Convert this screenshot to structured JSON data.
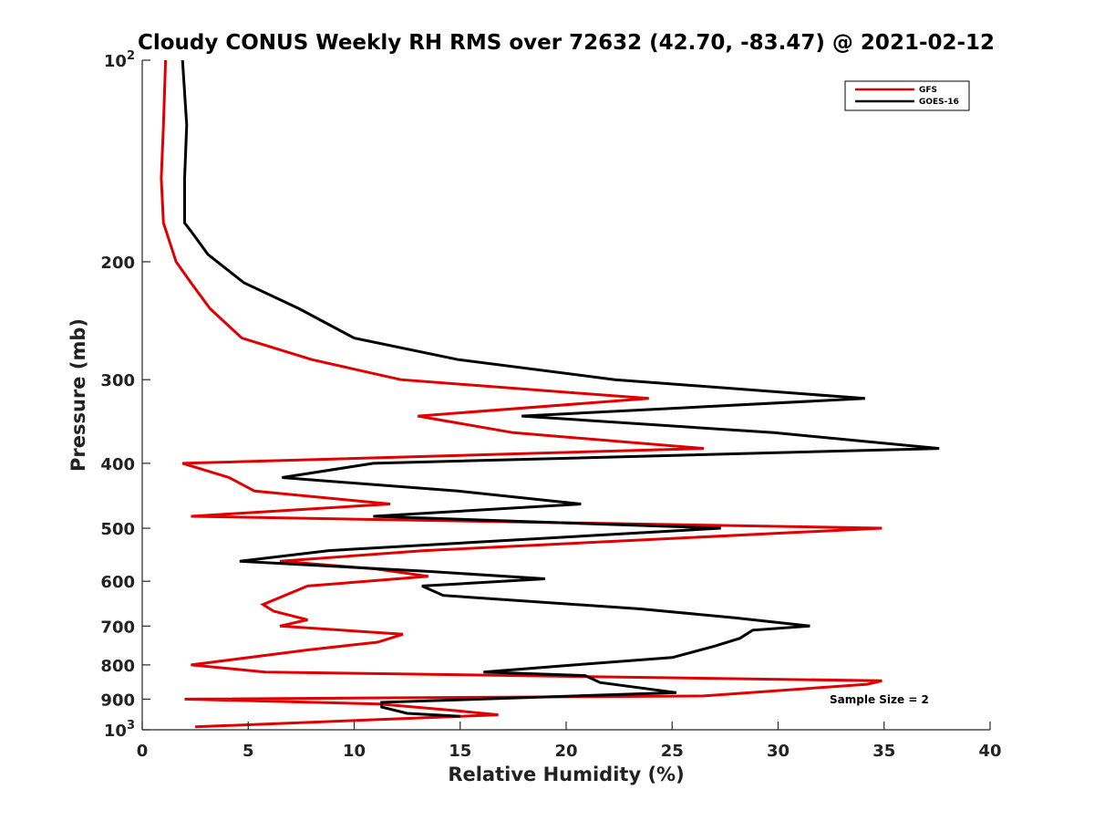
{
  "chart_data": {
    "type": "line",
    "title": "Cloudy CONUS Weekly RH RMS over 72632 (42.70, -83.47) @ 2021-02-12",
    "xlabel": "Relative Humidity (%)",
    "ylabel": "Pressure (mb)",
    "xlim": [
      0,
      40
    ],
    "ylim": [
      100,
      1000
    ],
    "y_scale": "log",
    "y_reversed": true,
    "grid": false,
    "legend_position": "top-right",
    "x_ticks": [
      "0",
      "5",
      "10",
      "15",
      "20",
      "25",
      "30",
      "35",
      "40"
    ],
    "y_ticks": [
      {
        "value": 100,
        "base": "10",
        "exp": "2"
      },
      {
        "value": 200,
        "label": "200"
      },
      {
        "value": 300,
        "label": "300"
      },
      {
        "value": 400,
        "label": "400"
      },
      {
        "value": 500,
        "label": "500"
      },
      {
        "value": 600,
        "label": "600"
      },
      {
        "value": 700,
        "label": "700"
      },
      {
        "value": 800,
        "label": "800"
      },
      {
        "value": 900,
        "label": "900"
      },
      {
        "value": 1000,
        "base": "10",
        "exp": "3"
      }
    ],
    "annotation": "Sample Size = 2",
    "series": [
      {
        "name": "GFS",
        "color": "#e00000",
        "points": [
          [
            1.1,
            100
          ],
          [
            1.0,
            125
          ],
          [
            0.9,
            150
          ],
          [
            1.0,
            175
          ],
          [
            1.6,
            200
          ],
          [
            2.3,
            215
          ],
          [
            3.2,
            235
          ],
          [
            4.7,
            260
          ],
          [
            8.0,
            280
          ],
          [
            12.2,
            300
          ],
          [
            23.9,
            320
          ],
          [
            13.0,
            340
          ],
          [
            17.5,
            360
          ],
          [
            26.5,
            380
          ],
          [
            1.9,
            400
          ],
          [
            4.1,
            420
          ],
          [
            5.3,
            440
          ],
          [
            11.7,
            460
          ],
          [
            2.3,
            480
          ],
          [
            34.9,
            500
          ],
          [
            13.3,
            540
          ],
          [
            6.5,
            560
          ],
          [
            11.0,
            575
          ],
          [
            13.5,
            590
          ],
          [
            7.8,
            610
          ],
          [
            5.7,
            650
          ],
          [
            6.2,
            665
          ],
          [
            7.8,
            685
          ],
          [
            6.5,
            700
          ],
          [
            12.3,
            720
          ],
          [
            11.1,
            740
          ],
          [
            7.8,
            760
          ],
          [
            2.3,
            800
          ],
          [
            5.8,
            820
          ],
          [
            34.9,
            845
          ],
          [
            34.2,
            855
          ],
          [
            26.5,
            890
          ],
          [
            2.0,
            900
          ],
          [
            11.2,
            915
          ],
          [
            14.6,
            935
          ],
          [
            16.8,
            950
          ],
          [
            2.5,
            990
          ]
        ]
      },
      {
        "name": "GOES-16",
        "color": "#000000",
        "points": [
          [
            1.9,
            100
          ],
          [
            2.1,
            125
          ],
          [
            2.0,
            150
          ],
          [
            2.0,
            175
          ],
          [
            2.3,
            180
          ],
          [
            3.1,
            195
          ],
          [
            4.8,
            215
          ],
          [
            7.4,
            235
          ],
          [
            10.0,
            260
          ],
          [
            14.9,
            280
          ],
          [
            22.3,
            300
          ],
          [
            34.1,
            320
          ],
          [
            17.9,
            340
          ],
          [
            29.8,
            360
          ],
          [
            37.6,
            380
          ],
          [
            10.9,
            400
          ],
          [
            6.6,
            420
          ],
          [
            14.9,
            440
          ],
          [
            20.7,
            460
          ],
          [
            10.9,
            480
          ],
          [
            27.3,
            500
          ],
          [
            8.8,
            540
          ],
          [
            4.6,
            560
          ],
          [
            13.5,
            580
          ],
          [
            19.0,
            595
          ],
          [
            13.2,
            610
          ],
          [
            14.2,
            630
          ],
          [
            23.5,
            660
          ],
          [
            27.9,
            680
          ],
          [
            31.5,
            700
          ],
          [
            28.8,
            710
          ],
          [
            28.2,
            730
          ],
          [
            27.0,
            750
          ],
          [
            25.0,
            780
          ],
          [
            20.4,
            800
          ],
          [
            16.1,
            820
          ],
          [
            20.9,
            830
          ],
          [
            21.6,
            850
          ],
          [
            25.2,
            880
          ],
          [
            11.3,
            910
          ],
          [
            11.3,
            925
          ],
          [
            12.5,
            945
          ],
          [
            15.0,
            955
          ]
        ]
      }
    ]
  }
}
